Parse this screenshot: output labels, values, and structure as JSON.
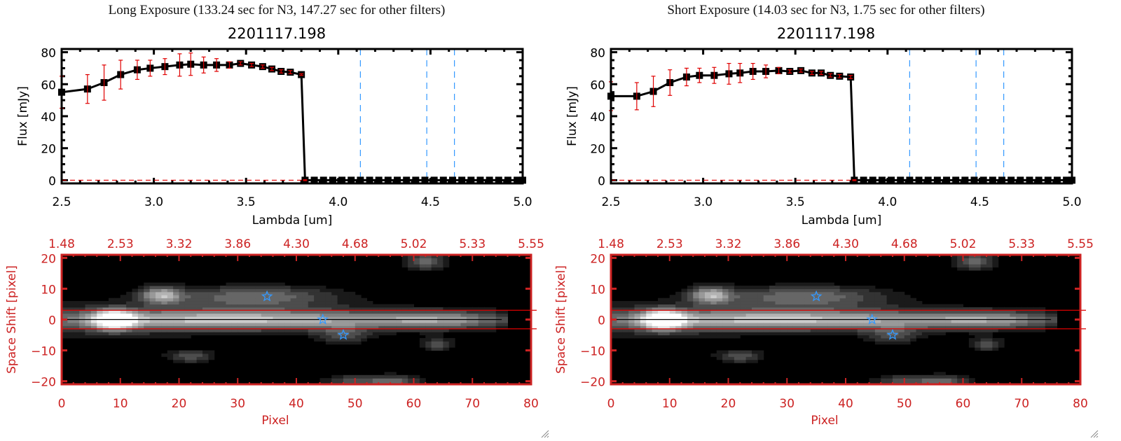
{
  "panels": [
    {
      "exposure_title": "Long Exposure (133.24 sec for N3, 147.27 sec for other filters)",
      "object_id": "2201117.198"
    },
    {
      "exposure_title": "Short Exposure (14.03 sec for N3, 1.75 sec for other filters)",
      "object_id": "2201117.198"
    }
  ],
  "colors": {
    "spectrum_line": "#000000",
    "error_bar": "#e00000",
    "filter_lines": "#3399ff",
    "image_axes": "#cc2222",
    "aperture_lines": "#dd0000",
    "star_markers": "#3399ff"
  },
  "chart_data": [
    {
      "type": "line",
      "panel": "long-exposure-spectrum",
      "title": "2201117.198",
      "xlabel": "Lambda [um]",
      "ylabel": "Flux [mJy]",
      "xlim": [
        2.5,
        5.0
      ],
      "ylim": [
        -2,
        82
      ],
      "xticks": [
        "2.5",
        "3.0",
        "3.5",
        "4.0",
        "4.5",
        "5.0"
      ],
      "yticks": [
        "0",
        "20",
        "40",
        "60",
        "80"
      ],
      "vertical_dashed_lines": [
        4.12,
        4.48,
        4.63
      ],
      "horizontal_dashed_line": 0,
      "x": [
        2.5,
        2.64,
        2.73,
        2.82,
        2.91,
        2.98,
        3.06,
        3.14,
        3.2,
        3.27,
        3.34,
        3.41,
        3.47,
        3.53,
        3.59,
        3.64,
        3.69,
        3.74,
        3.8,
        3.82,
        3.87,
        3.92,
        3.97,
        4.02,
        4.07,
        4.12,
        4.17,
        4.22,
        4.27,
        4.32,
        4.37,
        4.42,
        4.47,
        4.52,
        4.57,
        4.62,
        4.67,
        4.72,
        4.77,
        4.82,
        4.87,
        4.92,
        4.97,
        5.0
      ],
      "y": [
        55,
        57,
        61,
        66,
        69,
        70,
        71,
        72,
        72.5,
        72,
        72,
        72,
        73,
        72,
        71,
        69.5,
        68,
        67.5,
        66,
        0,
        0,
        0,
        0,
        0,
        0,
        0,
        0,
        0,
        0,
        0,
        0,
        0,
        0,
        0,
        0,
        0,
        0,
        0,
        0,
        0,
        0,
        0,
        0,
        0
      ],
      "yerr": [
        10,
        9,
        11,
        9,
        6,
        5,
        5,
        7,
        7,
        5,
        4,
        2,
        1,
        1,
        1,
        1,
        1,
        1,
        0.5,
        0.3,
        0,
        0,
        0,
        0,
        0,
        0,
        0,
        0,
        0,
        0,
        0,
        0,
        0,
        0,
        0,
        0,
        0,
        0,
        0,
        0,
        0,
        0,
        0,
        0
      ]
    },
    {
      "type": "line",
      "panel": "short-exposure-spectrum",
      "title": "2201117.198",
      "xlabel": "Lambda [um]",
      "ylabel": "Flux [mJy]",
      "xlim": [
        2.5,
        5.0
      ],
      "ylim": [
        -2,
        82
      ],
      "xticks": [
        "2.5",
        "3.0",
        "3.5",
        "4.0",
        "4.5",
        "5.0"
      ],
      "yticks": [
        "0",
        "20",
        "40",
        "60",
        "80"
      ],
      "vertical_dashed_lines": [
        4.12,
        4.48,
        4.63
      ],
      "horizontal_dashed_line": 0,
      "x": [
        2.5,
        2.64,
        2.73,
        2.82,
        2.91,
        2.98,
        3.06,
        3.14,
        3.2,
        3.27,
        3.34,
        3.41,
        3.47,
        3.53,
        3.59,
        3.64,
        3.69,
        3.74,
        3.8,
        3.82,
        3.87,
        3.92,
        3.97,
        4.02,
        4.07,
        4.12,
        4.17,
        4.22,
        4.27,
        4.32,
        4.37,
        4.42,
        4.47,
        4.52,
        4.57,
        4.62,
        4.67,
        4.72,
        4.77,
        4.82,
        4.87,
        4.92,
        4.97,
        5.0
      ],
      "y": [
        52.5,
        52.5,
        55.5,
        61,
        64.5,
        65.5,
        65.5,
        66.5,
        67,
        68,
        68,
        68.5,
        68,
        68.5,
        67,
        67,
        65.5,
        65,
        64.5,
        0,
        0,
        0,
        0,
        0,
        0,
        0,
        0,
        0,
        0,
        0,
        0,
        0,
        0,
        0,
        0,
        0,
        0,
        0,
        0,
        0,
        0,
        0,
        0,
        0
      ],
      "yerr": [
        9,
        8.5,
        9.5,
        8,
        5.5,
        4.5,
        5,
        6.5,
        6,
        5,
        4,
        2,
        1,
        1,
        1,
        1,
        1,
        1,
        1,
        0.3,
        0,
        0,
        0,
        0,
        0,
        0,
        0,
        0,
        0,
        0,
        0,
        0,
        0,
        0,
        0,
        0,
        0,
        0,
        0,
        0,
        0,
        0,
        0,
        0
      ]
    },
    {
      "type": "heatmap",
      "panel": "long-exposure-image",
      "xlabel": "Pixel",
      "ylabel": "Space Shift [pixel]",
      "xlim": [
        0,
        80
      ],
      "ylim": [
        -21,
        21
      ],
      "xticks": [
        "0",
        "10",
        "20",
        "30",
        "40",
        "50",
        "60",
        "70",
        "80"
      ],
      "yticks": [
        "-20",
        "-10",
        "0",
        "10",
        "20"
      ],
      "top_axis_ticks": [
        "1.48",
        "2.53",
        "3.32",
        "3.86",
        "4.30",
        "4.68",
        "5.02",
        "5.33",
        "5.55"
      ],
      "aperture_lines_y": [
        3,
        -3
      ],
      "center_line_y": 0,
      "stars": [
        [
          35,
          7.5
        ],
        [
          44.5,
          0
        ],
        [
          48,
          -5
        ]
      ],
      "sources": [
        {
          "x": 9,
          "y": 0,
          "peak": 1.0,
          "sx": 2.5,
          "sy": 2.2
        },
        {
          "x": 30,
          "y": 0,
          "peak": 0.7,
          "sx": 22,
          "sy": 2.2
        },
        {
          "x": 65,
          "y": 0,
          "peak": 0.45,
          "sx": 9,
          "sy": 2.0
        },
        {
          "x": 17,
          "y": 8,
          "peak": 0.65,
          "sx": 2.5,
          "sy": 2.0
        },
        {
          "x": 33,
          "y": 7.5,
          "peak": 0.45,
          "sx": 10,
          "sy": 2.5
        },
        {
          "x": 62,
          "y": 19,
          "peak": 0.45,
          "sx": 2.5,
          "sy": 2.0
        },
        {
          "x": 22,
          "y": -12,
          "peak": 0.35,
          "sx": 3,
          "sy": 1.5
        },
        {
          "x": 64,
          "y": -8,
          "peak": 0.35,
          "sx": 2,
          "sy": 1.5
        },
        {
          "x": 50,
          "y": -20,
          "peak": 0.35,
          "sx": 4,
          "sy": 1.5
        },
        {
          "x": 57,
          "y": -20,
          "peak": 0.4,
          "sx": 3,
          "sy": 1.5
        },
        {
          "x": 48,
          "y": -5,
          "peak": 0.3,
          "sx": 3,
          "sy": 2
        }
      ]
    },
    {
      "type": "heatmap",
      "panel": "short-exposure-image",
      "xlabel": "Pixel",
      "ylabel": "Space Shift [pixel]",
      "xlim": [
        0,
        80
      ],
      "ylim": [
        -21,
        21
      ],
      "xticks": [
        "0",
        "10",
        "20",
        "30",
        "40",
        "50",
        "60",
        "70",
        "80"
      ],
      "yticks": [
        "-20",
        "-10",
        "0",
        "10",
        "20"
      ],
      "top_axis_ticks": [
        "1.48",
        "2.53",
        "3.32",
        "3.86",
        "4.30",
        "4.68",
        "5.02",
        "5.33",
        "5.55"
      ],
      "aperture_lines_y": [
        3,
        -3
      ],
      "center_line_y": 0,
      "stars": [
        [
          35,
          7.5
        ],
        [
          44.5,
          0
        ],
        [
          48,
          -5
        ]
      ],
      "sources": [
        {
          "x": 9,
          "y": 0,
          "peak": 1.0,
          "sx": 2.5,
          "sy": 2.2
        },
        {
          "x": 30,
          "y": 0,
          "peak": 0.7,
          "sx": 22,
          "sy": 2.2
        },
        {
          "x": 65,
          "y": 0,
          "peak": 0.45,
          "sx": 9,
          "sy": 2.0
        },
        {
          "x": 17,
          "y": 8,
          "peak": 0.65,
          "sx": 2.5,
          "sy": 2.0
        },
        {
          "x": 33,
          "y": 7.5,
          "peak": 0.45,
          "sx": 10,
          "sy": 2.5
        },
        {
          "x": 62,
          "y": 19,
          "peak": 0.45,
          "sx": 2.5,
          "sy": 2.0
        },
        {
          "x": 22,
          "y": -12,
          "peak": 0.35,
          "sx": 3,
          "sy": 1.5
        },
        {
          "x": 64,
          "y": -8,
          "peak": 0.35,
          "sx": 2,
          "sy": 1.5
        },
        {
          "x": 50,
          "y": -20,
          "peak": 0.35,
          "sx": 4,
          "sy": 1.5
        },
        {
          "x": 57,
          "y": -20,
          "peak": 0.4,
          "sx": 3,
          "sy": 1.5
        },
        {
          "x": 48,
          "y": -5,
          "peak": 0.3,
          "sx": 3,
          "sy": 2
        }
      ]
    }
  ]
}
